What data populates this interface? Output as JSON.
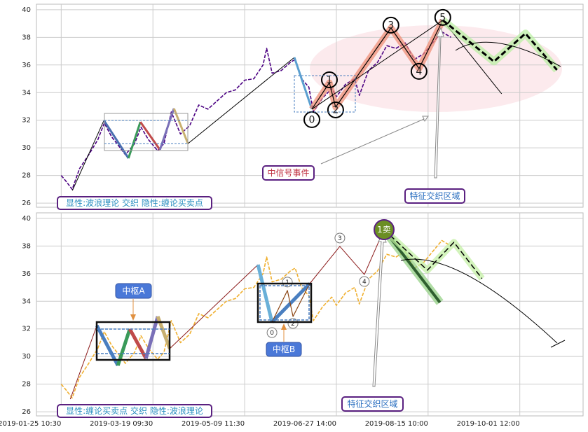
{
  "chart_data": [
    {
      "type": "line",
      "xlim": [
        -0.27,
        5.69
      ],
      "ylim": [
        25.7,
        40.4
      ],
      "xticks": [
        0,
        1,
        2,
        3,
        4,
        5
      ],
      "yticks": [
        26,
        28,
        30,
        32,
        34,
        36,
        38,
        40
      ],
      "grid": true,
      "price": {
        "color": "#4b0082",
        "dash": true,
        "x": [
          0.0,
          0.05,
          0.12,
          0.2,
          0.3,
          0.4,
          0.47,
          0.55,
          0.62,
          0.7,
          0.8,
          0.87,
          0.95,
          1.05,
          1.12,
          1.2,
          1.3,
          1.4,
          1.5,
          1.6,
          1.7,
          1.8,
          1.9,
          2.0,
          2.1,
          2.2,
          2.24,
          2.3,
          2.4,
          2.5,
          2.55,
          2.62,
          2.7,
          2.75,
          2.85,
          2.95,
          3.0,
          3.1,
          3.2,
          3.25,
          3.35,
          3.45,
          3.55,
          3.65,
          3.75,
          3.85,
          3.95,
          4.05,
          4.15,
          4.25
        ],
        "values": [
          28.0,
          27.6,
          27.0,
          28.5,
          29.5,
          30.6,
          31.8,
          30.8,
          30.2,
          29.5,
          30.3,
          31.5,
          30.6,
          29.8,
          30.3,
          32.6,
          31.0,
          31.6,
          33.1,
          32.8,
          33.4,
          34.0,
          34.2,
          34.9,
          35.0,
          36.0,
          37.2,
          35.4,
          35.6,
          36.2,
          36.4,
          35.0,
          34.4,
          32.6,
          33.6,
          34.3,
          33.7,
          34.6,
          35.0,
          33.8,
          35.6,
          36.2,
          37.4,
          37.2,
          37.6,
          36.4,
          36.8,
          37.6,
          38.4,
          38.0
        ]
      },
      "waves": [
        {
          "color": "#000000",
          "linewidth": 1,
          "x": [
            0.122,
            0.466
          ],
          "values": [
            26.91,
            31.99
          ]
        },
        {
          "color": "#4a6fb0",
          "linewidth": 3,
          "x": [
            0.466,
            0.733
          ],
          "values": [
            31.99,
            29.25
          ]
        },
        {
          "color": "#3a9a5a",
          "linewidth": 3,
          "x": [
            0.733,
            0.863
          ],
          "values": [
            29.25,
            31.88
          ]
        },
        {
          "color": "#c04a4a",
          "linewidth": 3,
          "x": [
            0.863,
            1.076
          ],
          "values": [
            31.88,
            29.86
          ]
        },
        {
          "color": "#7a70b8",
          "linewidth": 3,
          "x": [
            1.076,
            1.229
          ],
          "values": [
            29.86,
            32.85
          ]
        },
        {
          "color": "#c8b070",
          "linewidth": 3,
          "x": [
            1.229,
            1.382
          ],
          "values": [
            32.85,
            30.31
          ]
        },
        {
          "color": "#000000",
          "linewidth": 1,
          "x": [
            1.382,
            2.542
          ],
          "values": [
            30.31,
            36.55
          ]
        },
        {
          "color": "#5a9fd0",
          "linewidth": 3,
          "x": [
            2.542,
            2.733
          ],
          "values": [
            36.55,
            32.8
          ]
        },
        {
          "color": "#000000",
          "linewidth": 1.2,
          "halo": "#f08a70",
          "x": [
            2.733,
            2.924,
            2.992,
            3.595,
            3.901,
            4.16
          ],
          "values": [
            32.8,
            34.72,
            32.95,
            38.68,
            35.74,
            39.24
          ],
          "labels": [
            "0",
            "1",
            "2",
            "3",
            "4",
            "5"
          ]
        },
        {
          "color": "#000000",
          "linewidth": 1,
          "x": [
            2.733,
            4.16
          ],
          "values": [
            32.8,
            39.24
          ]
        },
        {
          "color": "#000000",
          "linewidth": 1,
          "x": [
            4.16,
            4.802
          ],
          "values": [
            39.24,
            33.91
          ]
        },
        {
          "color": "#000000",
          "linewidth": 3,
          "dash": true,
          "halo": "#b8f0a0",
          "x": [
            4.16,
            4.718,
            5.061,
            5.405
          ],
          "values": [
            39.24,
            36.25,
            38.28,
            35.64
          ]
        }
      ],
      "annotations": [
        "显性:波浪理论 交织 隐性:缠论买卖点",
        "中信号事件",
        "特征交织区域"
      ]
    },
    {
      "type": "line",
      "xlim": [
        -0.27,
        5.69
      ],
      "ylim": [
        25.7,
        40.4
      ],
      "xticks": [
        {
          "value": 0,
          "label": "2019-01-25 10:30"
        },
        {
          "value": 1,
          "label": "2019-03-19 09:30"
        },
        {
          "value": 2,
          "label": "2019-05-09 11:30"
        },
        {
          "value": 3,
          "label": "2019-06-27 14:00"
        },
        {
          "value": 4,
          "label": "2019-08-15 10:00"
        },
        {
          "value": 5,
          "label": "2019-10-01 12:00"
        }
      ],
      "yticks": [
        26,
        28,
        30,
        32,
        34,
        36,
        38,
        40
      ],
      "grid": true,
      "price": {
        "color": "#f0b030",
        "dash": true,
        "x": [
          0.0,
          0.05,
          0.12,
          0.2,
          0.3,
          0.4,
          0.47,
          0.55,
          0.62,
          0.7,
          0.8,
          0.87,
          0.95,
          1.05,
          1.12,
          1.2,
          1.3,
          1.4,
          1.5,
          1.6,
          1.7,
          1.8,
          1.9,
          2.0,
          2.1,
          2.2,
          2.24,
          2.3,
          2.4,
          2.5,
          2.55,
          2.62,
          2.7,
          2.75,
          2.85,
          2.95,
          3.0,
          3.1,
          3.2,
          3.25,
          3.35,
          3.45,
          3.55,
          3.65,
          3.75,
          3.85,
          3.95,
          4.05,
          4.15,
          4.25
        ],
        "values": [
          28.0,
          27.6,
          27.0,
          28.5,
          29.5,
          30.6,
          31.8,
          30.8,
          30.2,
          29.5,
          30.3,
          31.5,
          30.6,
          29.8,
          30.3,
          32.6,
          31.0,
          31.6,
          33.1,
          32.8,
          33.4,
          34.0,
          34.2,
          34.9,
          35.0,
          36.0,
          37.2,
          35.4,
          35.6,
          36.2,
          36.4,
          35.0,
          34.4,
          32.6,
          33.6,
          34.3,
          33.7,
          34.6,
          35.0,
          33.8,
          35.6,
          36.2,
          37.4,
          37.2,
          37.6,
          36.4,
          36.8,
          37.6,
          38.4,
          38.0
        ]
      },
      "waves": [
        {
          "color": "#8b1a1a",
          "linewidth": 1,
          "x": [
            0.099,
            0.389
          ],
          "values": [
            26.91,
            32.24
          ]
        },
        {
          "color": "#4a7fc0",
          "linewidth": 5,
          "x": [
            0.389,
            0.618
          ],
          "values": [
            32.24,
            29.35
          ]
        },
        {
          "color": "#3a9a5a",
          "linewidth": 5,
          "x": [
            0.618,
            0.748
          ],
          "values": [
            29.35,
            31.99
          ]
        },
        {
          "color": "#c04a4a",
          "linewidth": 5,
          "x": [
            0.748,
            0.924
          ],
          "values": [
            31.99,
            29.86
          ]
        },
        {
          "color": "#7a70b8",
          "linewidth": 5,
          "x": [
            0.924,
            1.053
          ],
          "values": [
            29.86,
            32.9
          ]
        },
        {
          "color": "#c8b070",
          "linewidth": 5,
          "x": [
            1.053,
            1.183
          ],
          "values": [
            32.9,
            30.57
          ]
        },
        {
          "color": "#8b1a1a",
          "linewidth": 1,
          "x": [
            1.183,
            2.145
          ],
          "values": [
            30.57,
            36.65
          ]
        },
        {
          "color": "#6ab0d8",
          "linewidth": 5,
          "x": [
            2.145,
            2.298
          ],
          "values": [
            36.65,
            32.49
          ]
        },
        {
          "color": "#4a7fc0",
          "linewidth": 5,
          "x": [
            2.298,
            2.71
          ],
          "values": [
            32.49,
            35.28
          ]
        },
        {
          "color": "#8b4513",
          "linewidth": 1.2,
          "x": [
            2.298,
            2.466,
            2.527,
            2.71
          ],
          "values": [
            32.49,
            34.78,
            32.9,
            35.28
          ],
          "labels": [
            "0",
            "1",
            "2",
            null
          ]
        },
        {
          "color": "#8b1a1a",
          "linewidth": 1,
          "x": [
            2.71,
            3.038,
            3.305,
            3.519
          ],
          "values": [
            35.28,
            37.97,
            35.94,
            39.19
          ],
          "labels": [
            null,
            "3",
            "4",
            null
          ]
        },
        {
          "color": "#2f5f2f",
          "linewidth": 4,
          "halo": "#8fcf7f",
          "x": [
            3.519,
            4.13
          ],
          "values": [
            39.19,
            33.91
          ]
        },
        {
          "color": "#000000",
          "linewidth": 1.5,
          "dash": true,
          "halo": "#c0f0a0",
          "x": [
            3.519,
            3.992,
            4.282,
            4.588
          ],
          "values": [
            39.19,
            36.25,
            38.27,
            35.64
          ]
        }
      ],
      "annotations": [
        "显性:缠论买卖点 交织 隐性:波浪理论",
        "中枢A",
        "中枢B",
        "1卖",
        "特征交织区域"
      ]
    }
  ]
}
